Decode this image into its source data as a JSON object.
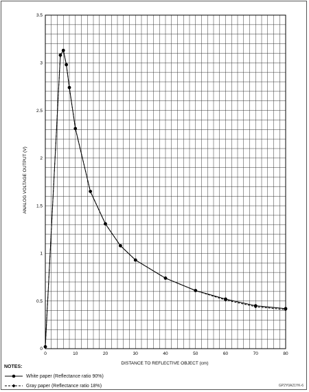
{
  "chart_data": {
    "type": "line",
    "xlabel": "DISTANCE TO REFLECTIVE OBJECT (cm)",
    "ylabel": "ANALOG VOLTAGE OUTPUT (V)",
    "xlim": [
      0,
      80
    ],
    "ylim": [
      0,
      3.5
    ],
    "x_ticks": [
      0,
      10,
      20,
      30,
      40,
      50,
      60,
      70,
      80
    ],
    "y_ticks": [
      0,
      0.5,
      1,
      1.5,
      2,
      2.5,
      3,
      3.5
    ],
    "grid": true,
    "series": [
      {
        "name": "White paper (Reflectance ratio 90%)",
        "style": "solid",
        "marker": "circle",
        "points": [
          [
            0,
            0.02
          ],
          [
            5,
            3.08
          ],
          [
            6,
            3.13
          ],
          [
            7,
            2.98
          ],
          [
            8,
            2.74
          ],
          [
            10,
            2.31
          ],
          [
            15,
            1.65
          ],
          [
            20,
            1.31
          ],
          [
            25,
            1.08
          ],
          [
            30,
            0.93
          ],
          [
            40,
            0.74
          ],
          [
            50,
            0.61
          ],
          [
            60,
            0.52
          ],
          [
            70,
            0.45
          ],
          [
            80,
            0.42
          ]
        ]
      },
      {
        "name": "Gray paper (Reflectance ratio 18%)",
        "style": "dashed",
        "marker": "diamond",
        "points": [
          [
            0,
            0.02
          ],
          [
            5,
            3.08
          ],
          [
            6,
            3.13
          ],
          [
            7,
            2.98
          ],
          [
            8,
            2.74
          ],
          [
            10,
            2.31
          ],
          [
            15,
            1.65
          ],
          [
            20,
            1.31
          ],
          [
            25,
            1.08
          ],
          [
            30,
            0.93
          ],
          [
            40,
            0.74
          ],
          [
            50,
            0.61
          ],
          [
            60,
            0.51
          ],
          [
            70,
            0.44
          ],
          [
            80,
            0.41
          ]
        ]
      }
    ]
  },
  "notes": {
    "title": "NOTES:",
    "items": [
      "White paper (Reflectance ratio 90%)",
      "Gray paper (Reflectance ratio 18%)"
    ]
  },
  "credit": "GP2Y0A21YK-6"
}
